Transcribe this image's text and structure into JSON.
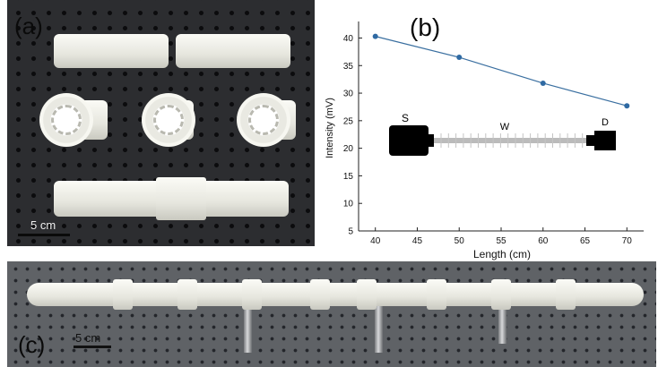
{
  "panels": {
    "a_label": "(a)",
    "b_label": "(b)",
    "c_label": "(c)",
    "a_scale": "5 cm",
    "c_scale": "5 cm"
  },
  "chart_data": {
    "type": "line",
    "title": "",
    "xlabel": "Length (cm)",
    "ylabel": "Intensity (mV)",
    "x_ticks": [
      40,
      45,
      50,
      55,
      60,
      65,
      70
    ],
    "y_ticks": [
      5,
      10,
      15,
      20,
      25,
      30,
      35,
      40
    ],
    "xlim": [
      38,
      72
    ],
    "ylim": [
      5,
      43
    ],
    "grid": false,
    "line_color": "#3a6fa0",
    "marker_color": "#2f6aa3",
    "series": [
      {
        "x": [
          40,
          50,
          60,
          70
        ],
        "y": [
          40.3,
          36.5,
          31.8,
          27.7
        ]
      }
    ],
    "inset_labels": {
      "source": "S",
      "waveguide": "W",
      "detector": "D"
    }
  }
}
